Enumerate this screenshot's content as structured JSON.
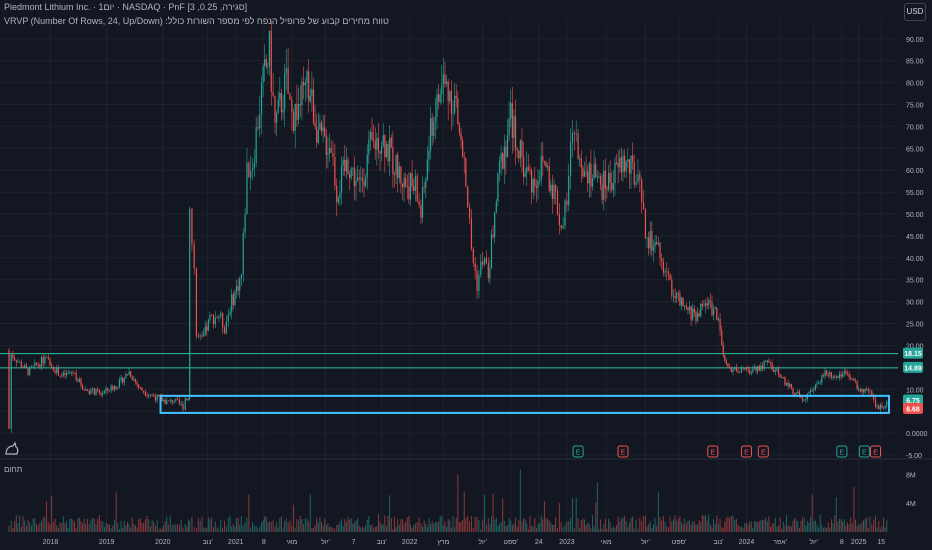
{
  "header": {
    "title": "Piedmont Lithium Inc. · 1יום · NASDAQ · PnF [3 ,0.25 ,סגירה]",
    "indicator": "VRVP (Number Of Rows, 24, Up/Down) :טווח מחירים קבוע של פרופיל הנפח לפי מספר השורות כולל"
  },
  "currency": "USD",
  "volume_label": "תחום",
  "colors": {
    "background": "#131722",
    "up": "#26a69a",
    "down": "#ef5350",
    "level_line": "#26c6a0",
    "box": "#40c4ff",
    "grid": "#1e222d"
  },
  "price_badges": [
    {
      "text": "18.15",
      "color": "#26a69a"
    },
    {
      "text": "14.89",
      "color": "#26a69a"
    },
    {
      "text": "6.75",
      "color": "#26a69a"
    },
    {
      "text": "6.68",
      "color": "#ef5350"
    }
  ],
  "events": [
    {
      "label": "E",
      "color": "#26a69a",
      "date": 2022.7
    },
    {
      "label": "E",
      "color": "#ef5350",
      "date": 2023.1
    },
    {
      "label": "E",
      "color": "#ef5350",
      "date": 2023.9
    },
    {
      "label": "E",
      "color": "#ef5350",
      "date": 2024.2
    },
    {
      "label": "E",
      "color": "#ef5350",
      "date": 2024.35
    },
    {
      "label": "E",
      "color": "#26a69a",
      "date": 2025.05
    },
    {
      "label": "E",
      "color": "#26a69a",
      "date": 2025.25
    },
    {
      "label": "E",
      "color": "#ef5350",
      "date": 2025.35
    }
  ],
  "chart_data": {
    "type": "bar",
    "ylim": [
      -5,
      92
    ],
    "xlim": [
      2017.55,
      2025.55
    ],
    "y_ticks": [
      "90.00",
      "85.00",
      "80.00",
      "75.00",
      "70.00",
      "65.00",
      "60.00",
      "55.00",
      "50.00",
      "45.00",
      "40.00",
      "35.00",
      "30.00",
      "25.00",
      "20.00",
      "15.00",
      "10.00",
      "5.00",
      "0.0000",
      "-5.00"
    ],
    "y_tick_values": [
      90,
      85,
      80,
      75,
      70,
      65,
      60,
      55,
      50,
      45,
      40,
      35,
      30,
      25,
      20,
      15,
      10,
      5,
      0,
      -5
    ],
    "x_ticks": [
      {
        "label": "2018",
        "x": 2018.0
      },
      {
        "label": "2019",
        "x": 2018.5
      },
      {
        "label": "2020",
        "x": 2019.0
      },
      {
        "label": "נוב'",
        "x": 2019.4
      },
      {
        "label": "2021",
        "x": 2019.65
      },
      {
        "label": "8",
        "x": 2019.9
      },
      {
        "label": "מאי",
        "x": 2020.15
      },
      {
        "label": "יול'",
        "x": 2020.45
      },
      {
        "label": "7",
        "x": 2020.7
      },
      {
        "label": "נוב'",
        "x": 2020.95
      },
      {
        "label": "2022",
        "x": 2021.2
      },
      {
        "label": "מרץ",
        "x": 2021.5
      },
      {
        "label": "יול'",
        "x": 2021.85
      },
      {
        "label": "ספט'",
        "x": 2022.1
      },
      {
        "label": "24",
        "x": 2022.35
      },
      {
        "label": "2023",
        "x": 2022.6
      },
      {
        "label": "מאי",
        "x": 2022.95
      },
      {
        "label": "יול'",
        "x": 2023.3
      },
      {
        "label": "ספט'",
        "x": 2023.6
      },
      {
        "label": "נוב'",
        "x": 2023.95
      },
      {
        "label": "2024",
        "x": 2024.2
      },
      {
        "label": "אפר'",
        "x": 2024.5
      },
      {
        "label": "יול'",
        "x": 2024.8
      },
      {
        "label": "8",
        "x": 2025.05
      },
      {
        "label": "2025",
        "x": 2025.2
      },
      {
        "label": "15",
        "x": 2025.4
      }
    ],
    "volume_ticks": [
      {
        "label": "8M",
        "value": 8
      },
      {
        "label": "4M",
        "value": 4
      }
    ],
    "horizontal_levels": [
      18.15,
      14.89
    ],
    "box_zone": {
      "x_start": 2018.98,
      "x_end": 2025.47,
      "y_low": 4.6,
      "y_high": 8.5
    },
    "price_path": [
      [
        2017.62,
        19
      ],
      [
        2017.63,
        1
      ],
      [
        2017.65,
        18
      ],
      [
        2017.8,
        14
      ],
      [
        2017.95,
        17
      ],
      [
        2018.1,
        13
      ],
      [
        2018.2,
        14
      ],
      [
        2018.3,
        10
      ],
      [
        2018.45,
        9
      ],
      [
        2018.6,
        11
      ],
      [
        2018.7,
        14
      ],
      [
        2018.8,
        10
      ],
      [
        2018.95,
        8
      ],
      [
        2019.05,
        7
      ],
      [
        2019.1,
        7.5
      ],
      [
        2019.18,
        6
      ],
      [
        2019.2,
        8
      ],
      [
        2019.23,
        7.8
      ],
      [
        2019.24,
        54
      ],
      [
        2019.26,
        43
      ],
      [
        2019.28,
        38
      ],
      [
        2019.3,
        22
      ],
      [
        2019.35,
        21
      ],
      [
        2019.42,
        26
      ],
      [
        2019.5,
        27
      ],
      [
        2019.55,
        24
      ],
      [
        2019.6,
        29
      ],
      [
        2019.7,
        36
      ],
      [
        2019.75,
        60
      ],
      [
        2019.8,
        62
      ],
      [
        2019.88,
        78
      ],
      [
        2019.95,
        87
      ],
      [
        2020.0,
        70
      ],
      [
        2020.1,
        80
      ],
      [
        2020.15,
        72
      ],
      [
        2020.3,
        79
      ],
      [
        2020.4,
        67
      ],
      [
        2020.5,
        66
      ],
      [
        2020.55,
        55
      ],
      [
        2020.65,
        62
      ],
      [
        2020.75,
        56
      ],
      [
        2020.85,
        65
      ],
      [
        2020.95,
        68
      ],
      [
        2021.05,
        62
      ],
      [
        2021.15,
        57
      ],
      [
        2021.25,
        56
      ],
      [
        2021.3,
        50
      ],
      [
        2021.4,
        71
      ],
      [
        2021.5,
        80
      ],
      [
        2021.6,
        76
      ],
      [
        2021.7,
        58
      ],
      [
        2021.75,
        42
      ],
      [
        2021.8,
        34
      ],
      [
        2021.85,
        40
      ],
      [
        2021.9,
        36
      ],
      [
        2022.0,
        60
      ],
      [
        2022.1,
        72
      ],
      [
        2022.2,
        62
      ],
      [
        2022.3,
        57
      ],
      [
        2022.4,
        62
      ],
      [
        2022.5,
        54
      ],
      [
        2022.55,
        47
      ],
      [
        2022.6,
        52
      ],
      [
        2022.65,
        70
      ],
      [
        2022.7,
        64
      ],
      [
        2022.8,
        60
      ],
      [
        2022.9,
        56
      ],
      [
        2023.0,
        58
      ],
      [
        2023.1,
        62
      ],
      [
        2023.2,
        59
      ],
      [
        2023.25,
        55
      ],
      [
        2023.3,
        45
      ],
      [
        2023.4,
        42
      ],
      [
        2023.55,
        32
      ],
      [
        2023.65,
        28
      ],
      [
        2023.75,
        27
      ],
      [
        2023.85,
        30
      ],
      [
        2023.95,
        27
      ],
      [
        2023.98,
        19
      ],
      [
        2024.02,
        15
      ],
      [
        2024.2,
        14
      ],
      [
        2024.3,
        15
      ],
      [
        2024.4,
        16
      ],
      [
        2024.5,
        13
      ],
      [
        2024.6,
        10
      ],
      [
        2024.7,
        8
      ],
      [
        2024.8,
        10
      ],
      [
        2024.9,
        14
      ],
      [
        2025.0,
        13
      ],
      [
        2025.1,
        14
      ],
      [
        2025.2,
        10
      ],
      [
        2025.3,
        9
      ],
      [
        2025.35,
        6
      ],
      [
        2025.45,
        6.7
      ]
    ]
  }
}
